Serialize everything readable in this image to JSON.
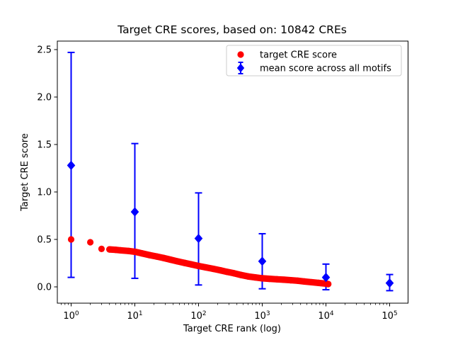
{
  "title": "Target CRE scores, based on: 10842 CREs",
  "xlabel": "Target CRE rank (log)",
  "ylabel": "Target CRE score",
  "legend": {
    "position": "upper right",
    "items": [
      {
        "label": "target CRE score",
        "marker": "circle-icon",
        "color": "#ff0000"
      },
      {
        "label": "mean score across all motifs",
        "marker": "diamond-errorbar-icon",
        "color": "#0000ff"
      }
    ]
  },
  "colors": {
    "red_series": "#ff0000",
    "blue_series": "#0000ff",
    "axis": "#000000",
    "background": "#ffffff",
    "legend_border": "#cccccc"
  },
  "chart_data": {
    "type": "scatter",
    "title": "Target CRE scores, based on: 10842 CREs",
    "xlabel": "Target CRE rank (log)",
    "ylabel": "Target CRE score",
    "xscale": "log",
    "xlim": [
      0.6,
      190000
    ],
    "ylim": [
      -0.17,
      2.59
    ],
    "x_tick_exponents": [
      0,
      1,
      2,
      3,
      4,
      5
    ],
    "y_ticks": [
      0.0,
      0.5,
      1.0,
      1.5,
      2.0,
      2.5
    ],
    "grid": false,
    "legend_position": "upper right",
    "series": [
      {
        "name": "target CRE score",
        "type": "scatter",
        "marker": "circle",
        "color": "#ff0000",
        "points": [
          [
            1,
            0.5
          ],
          [
            2,
            0.47
          ],
          [
            3,
            0.4
          ],
          [
            4,
            0.395
          ],
          [
            5,
            0.39
          ],
          [
            6,
            0.385
          ],
          [
            8,
            0.378
          ],
          [
            10,
            0.37
          ],
          [
            13,
            0.353
          ],
          [
            17,
            0.335
          ],
          [
            22,
            0.32
          ],
          [
            28,
            0.305
          ],
          [
            36,
            0.287
          ],
          [
            46,
            0.27
          ],
          [
            60,
            0.253
          ],
          [
            77,
            0.237
          ],
          [
            100,
            0.22
          ],
          [
            130,
            0.205
          ],
          [
            170,
            0.19
          ],
          [
            220,
            0.175
          ],
          [
            280,
            0.158
          ],
          [
            360,
            0.143
          ],
          [
            460,
            0.126
          ],
          [
            600,
            0.11
          ],
          [
            770,
            0.1
          ],
          [
            1000,
            0.09
          ],
          [
            1300,
            0.085
          ],
          [
            1700,
            0.08
          ],
          [
            2200,
            0.075
          ],
          [
            2800,
            0.07
          ],
          [
            3600,
            0.065
          ],
          [
            4600,
            0.057
          ],
          [
            6000,
            0.049
          ],
          [
            7700,
            0.042
          ],
          [
            10000,
            0.034
          ],
          [
            10842,
            0.03
          ]
        ]
      },
      {
        "name": "mean score across all motifs",
        "type": "errorbar",
        "marker": "diamond",
        "color": "#0000ff",
        "points": [
          {
            "x": 1,
            "y": 1.28,
            "lo": 0.1,
            "hi": 2.47
          },
          {
            "x": 10,
            "y": 0.79,
            "lo": 0.09,
            "hi": 1.51
          },
          {
            "x": 100,
            "y": 0.51,
            "lo": 0.02,
            "hi": 0.99
          },
          {
            "x": 1000,
            "y": 0.27,
            "lo": -0.02,
            "hi": 0.56
          },
          {
            "x": 10000,
            "y": 0.1,
            "lo": -0.03,
            "hi": 0.24
          },
          {
            "x": 100000,
            "y": 0.04,
            "lo": -0.04,
            "hi": 0.13
          }
        ]
      }
    ]
  }
}
